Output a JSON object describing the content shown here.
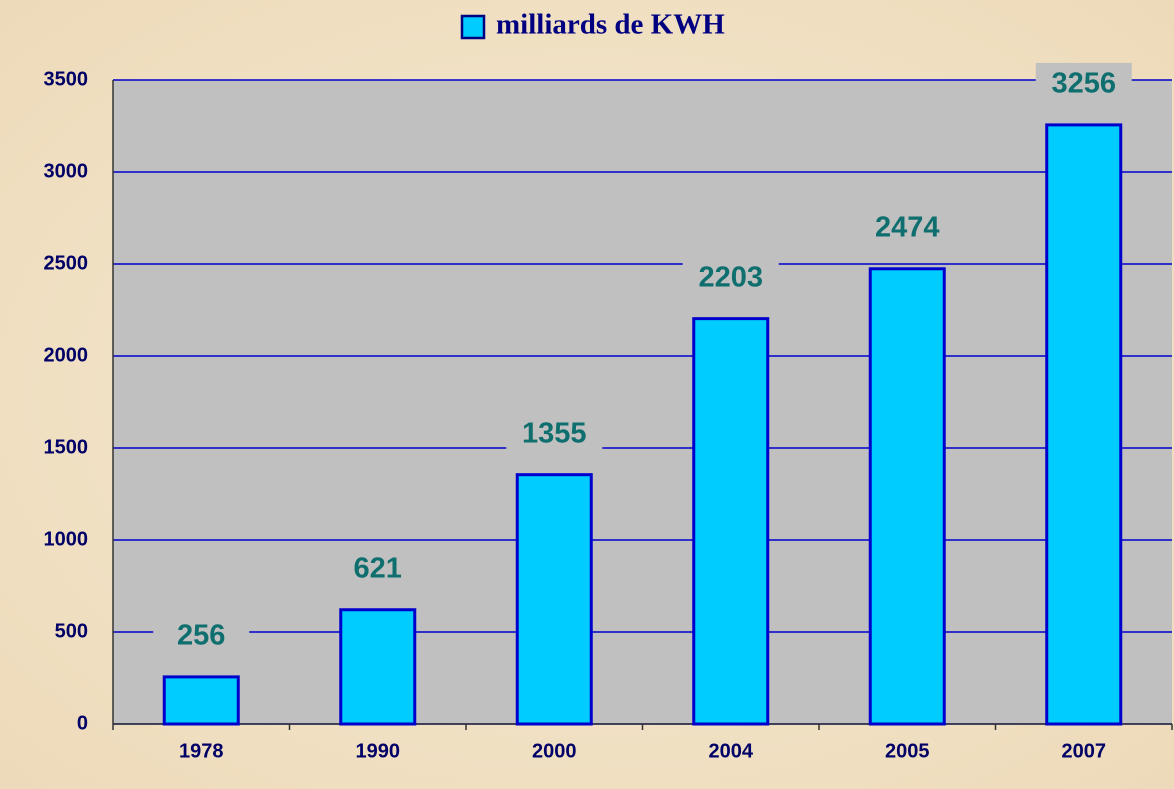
{
  "chart_data": {
    "type": "bar",
    "categories": [
      "1978",
      "1990",
      "2000",
      "2004",
      "2005",
      "2007"
    ],
    "series": [
      {
        "name": "milliards de KWH",
        "color": "#00ccff",
        "values": [
          256,
          621,
          1355,
          2203,
          2474,
          3256
        ]
      }
    ],
    "ylim": [
      0,
      3500
    ],
    "yticks": [
      0,
      500,
      1000,
      1500,
      2000,
      2500,
      3000,
      3500
    ],
    "grid": true,
    "legend": "top"
  }
}
